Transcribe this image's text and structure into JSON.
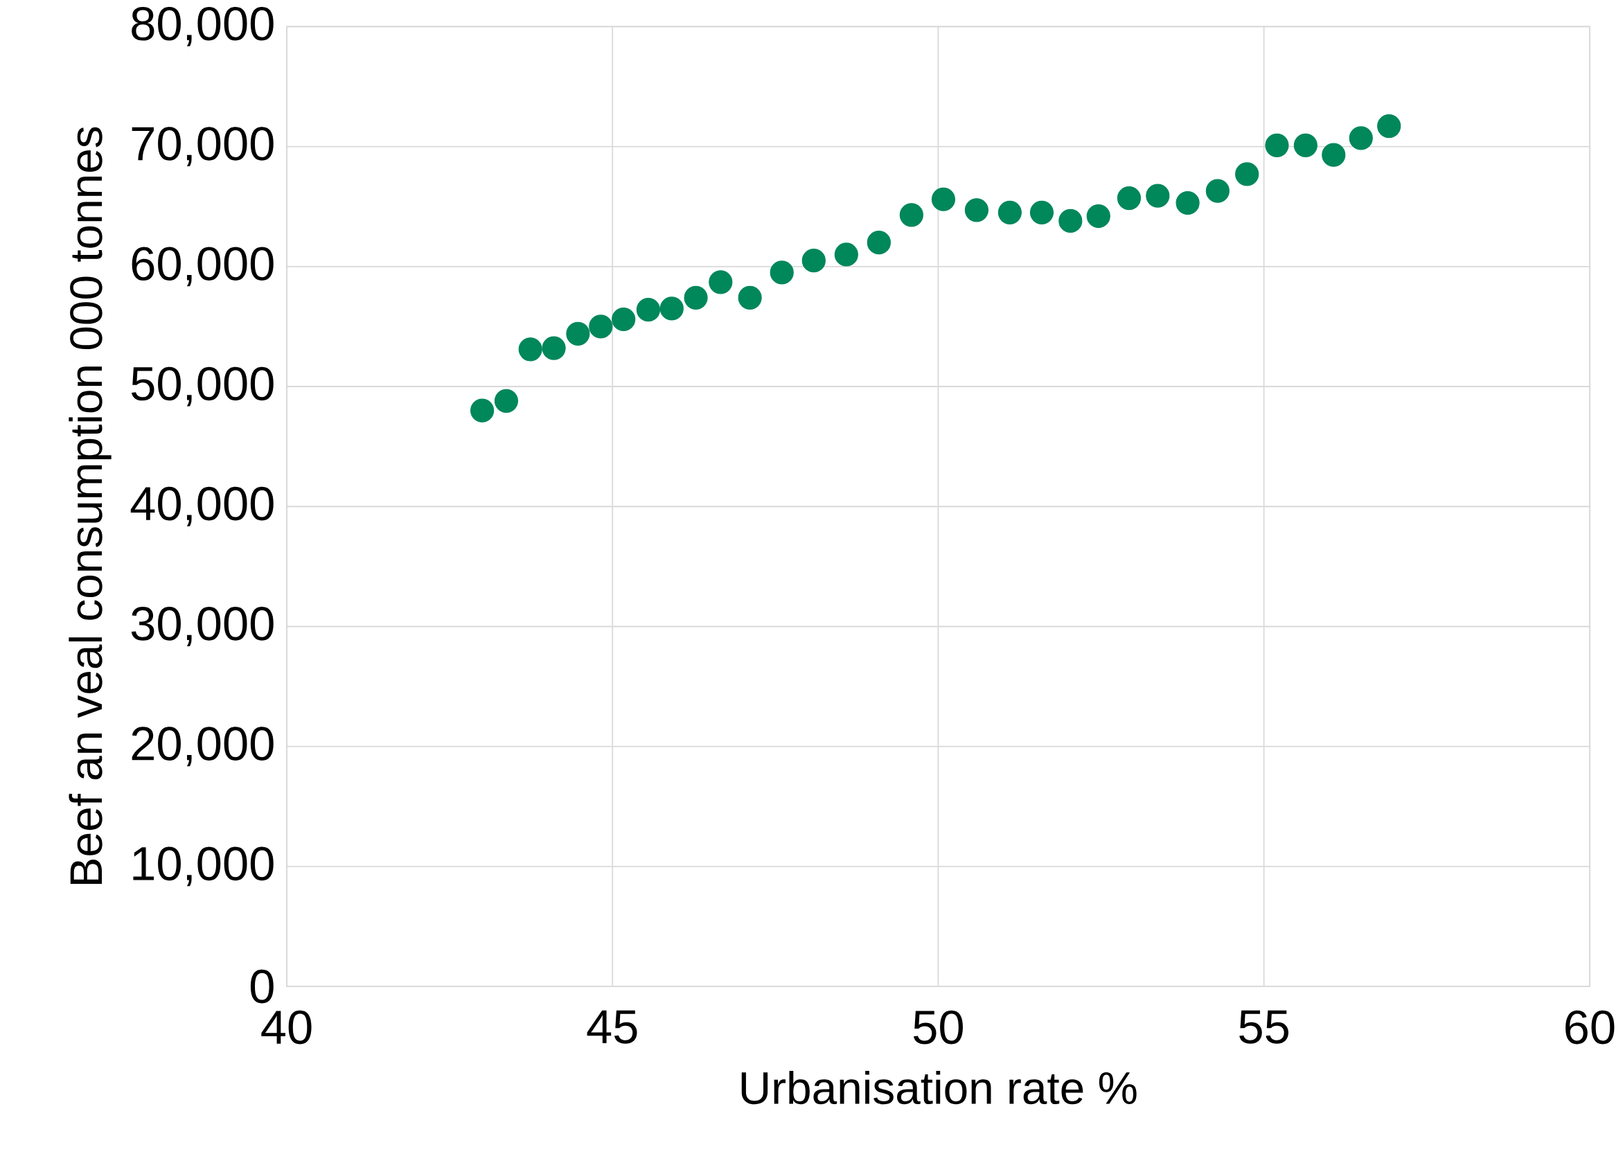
{
  "chart_data": {
    "type": "scatter",
    "xlabel": "Urbanisation rate %",
    "ylabel": "Beef an veal consumption 000 tonnes",
    "x": [
      43.0,
      43.37,
      43.74,
      44.1,
      44.47,
      44.82,
      45.17,
      45.55,
      45.91,
      46.28,
      46.66,
      47.11,
      47.6,
      48.09,
      48.59,
      49.09,
      49.59,
      50.08,
      50.59,
      51.1,
      51.59,
      52.03,
      52.46,
      52.93,
      53.37,
      53.83,
      54.29,
      54.74,
      55.2,
      55.64,
      56.07,
      56.49,
      56.92
    ],
    "series": [
      {
        "color": "#00875a",
        "values": [
          48000,
          48800,
          53100,
          53200,
          54400,
          55000,
          55600,
          56400,
          56500,
          57400,
          58700,
          57400,
          59500,
          60500,
          61000,
          62000,
          64300,
          65600,
          64700,
          64500,
          64500,
          63800,
          64200,
          65700,
          65900,
          65300,
          66300,
          67700,
          70100,
          70100,
          69300,
          70700,
          71700
        ]
      }
    ],
    "xlim": [
      40,
      60
    ],
    "xticks": [
      40,
      45,
      50,
      55,
      60
    ],
    "ylim": [
      0,
      80000
    ],
    "yticks": [
      0,
      {
        "value": 10000,
        "label": "10,000"
      },
      {
        "value": 20000,
        "label": "20,000"
      },
      {
        "value": 30000,
        "label": "30,000"
      },
      {
        "value": 40000,
        "label": "40,000"
      },
      {
        "value": 50000,
        "label": "50,000"
      },
      {
        "value": 60000,
        "label": "60,000"
      },
      {
        "value": 70000,
        "label": "70,000"
      },
      {
        "value": 80000,
        "label": "80,000"
      }
    ],
    "grid": true,
    "marker": "circle"
  }
}
